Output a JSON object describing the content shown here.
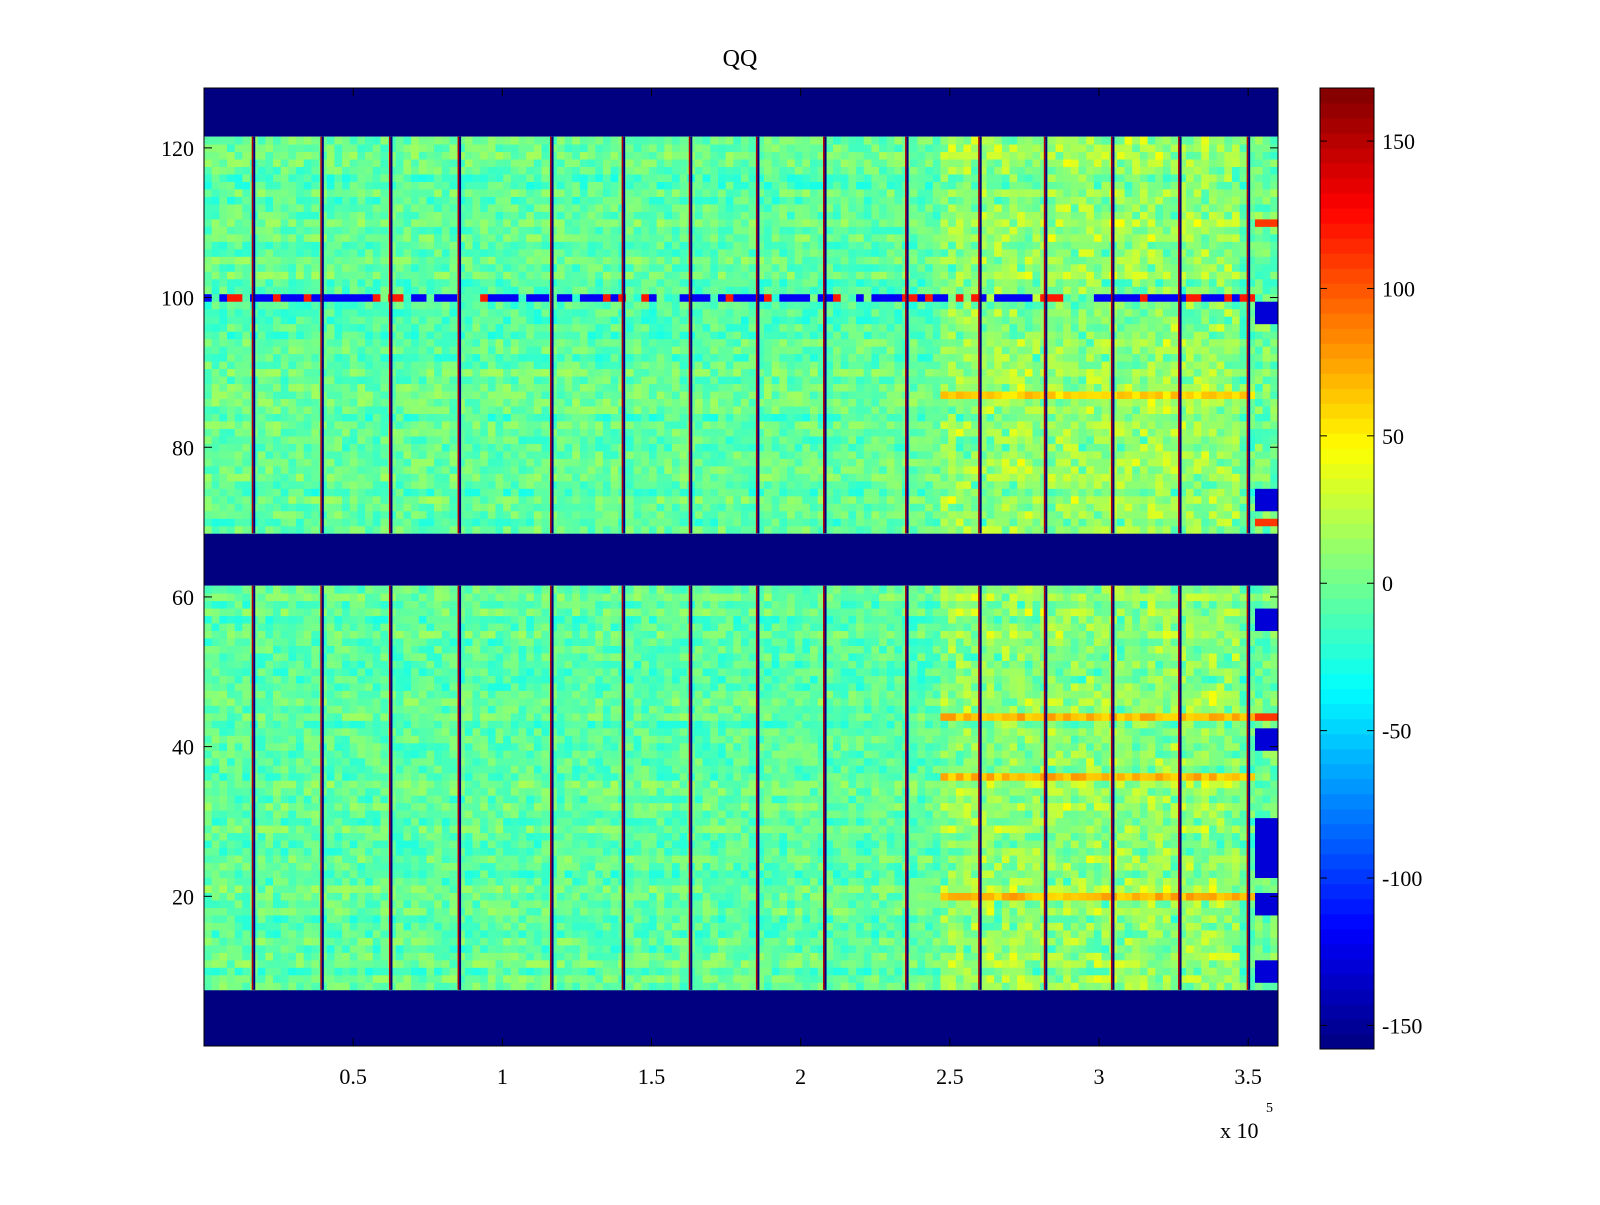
{
  "chart_data": {
    "type": "heatmap",
    "title": "QQ",
    "xlabel": "",
    "ylabel": "",
    "x_multiplier_label": "x 10",
    "x_multiplier_exponent": "5",
    "xlim": [
      0,
      360000
    ],
    "ylim": [
      0,
      128
    ],
    "x_ticks": [
      {
        "value": 50000,
        "label": "0.5"
      },
      {
        "value": 100000,
        "label": "1"
      },
      {
        "value": 150000,
        "label": "1.5"
      },
      {
        "value": 200000,
        "label": "2"
      },
      {
        "value": 250000,
        "label": "2.5"
      },
      {
        "value": 300000,
        "label": "3"
      },
      {
        "value": 350000,
        "label": "3.5"
      }
    ],
    "y_ticks": [
      {
        "value": 20,
        "label": "20"
      },
      {
        "value": 40,
        "label": "40"
      },
      {
        "value": 60,
        "label": "60"
      },
      {
        "value": 80,
        "label": "80"
      },
      {
        "value": 100,
        "label": "100"
      },
      {
        "value": 120,
        "label": "120"
      }
    ],
    "colormap": "jet",
    "colorbar": {
      "range": [
        -158,
        168
      ],
      "ticks": [
        {
          "value": 150,
          "label": "150"
        },
        {
          "value": 100,
          "label": "100"
        },
        {
          "value": 50,
          "label": "50"
        },
        {
          "value": 0,
          "label": "0"
        },
        {
          "value": -50,
          "label": "-50"
        },
        {
          "value": -100,
          "label": "-100"
        },
        {
          "value": -150,
          "label": "-150"
        }
      ]
    },
    "masked_row_bands": [
      {
        "y_from": 0,
        "y_to": 7.5,
        "value": -158
      },
      {
        "y_from": 61.5,
        "y_to": 68.5,
        "value": -158
      },
      {
        "y_from": 121.5,
        "y_to": 128,
        "value": -158
      }
    ],
    "data_row_bands": [
      {
        "y_from": 7.5,
        "y_to": 61.5
      },
      {
        "y_from": 68.5,
        "y_to": 121.5
      }
    ],
    "background_value_mean": 0,
    "background_value_range": [
      -60,
      50
    ],
    "vertical_boundary_lines_x": [
      16500,
      39500,
      62500,
      85500,
      116500,
      140500,
      163000,
      185500,
      208000,
      235500,
      260000,
      282000,
      304500,
      327000,
      350000
    ],
    "elevated_region": {
      "x_from": 245000,
      "x_to": 345000,
      "value": 30
    },
    "highlighted_rows": [
      {
        "y": 100,
        "value": -120,
        "note_pattern": "alternating"
      },
      {
        "y": 87,
        "value": 70
      },
      {
        "y": 44,
        "value": 80
      },
      {
        "y": 36,
        "value": 80
      },
      {
        "y": 20,
        "value": 80
      }
    ],
    "right_edge_column": {
      "x_from": 351000,
      "x_to": 360000,
      "low_rows": [
        57,
        41,
        29,
        26,
        24,
        19,
        10,
        73,
        98
      ],
      "high_rows": [
        44,
        70,
        110
      ]
    }
  }
}
